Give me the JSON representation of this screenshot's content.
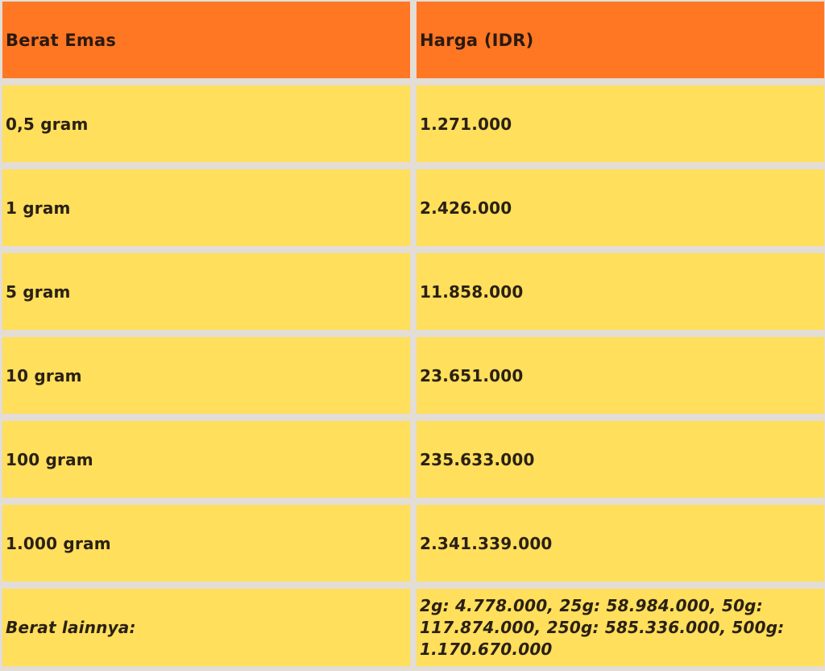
{
  "table": {
    "headers": [
      "Berat Emas",
      "Harga (IDR)"
    ],
    "rows": [
      {
        "weight": "0,5 gram",
        "price": "1.271.000"
      },
      {
        "weight": "1 gram",
        "price": "2.426.000"
      },
      {
        "weight": "5 gram",
        "price": "11.858.000"
      },
      {
        "weight": "10 gram",
        "price": "23.651.000"
      },
      {
        "weight": "100 gram",
        "price": "235.633.000"
      },
      {
        "weight": "1.000 gram",
        "price": "2.341.339.000"
      }
    ],
    "other": {
      "label": "Berat lainnya:",
      "value": "2g: 4.778.000, 25g: 58.984.000, 50g: 117.874.000, 250g: 585.336.000, 500g: 1.170.670.000"
    }
  },
  "colors": {
    "header_bg": "#ff7623",
    "row_bg": "#ffdf5b",
    "grid_bg": "#e3ddd6"
  }
}
